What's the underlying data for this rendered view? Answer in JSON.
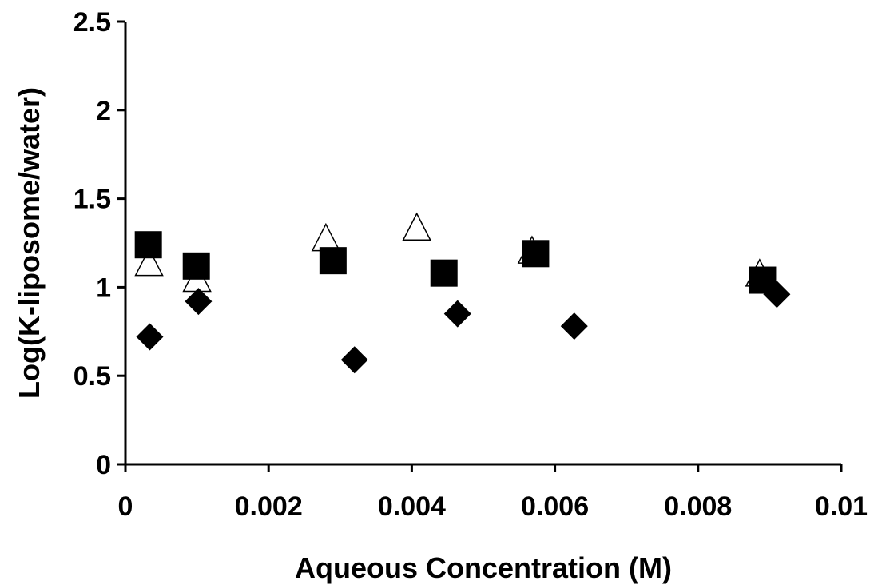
{
  "chart_data": {
    "type": "scatter",
    "title": "",
    "xlabel": "Aqueous Concentration (M)",
    "ylabel": "Log(K-liposome/water)",
    "xlim": [
      0,
      0.01
    ],
    "ylim": [
      0,
      2.5
    ],
    "x_ticks": [
      "0",
      "0.002",
      "0.004",
      "0.006",
      "0.008",
      "0.01"
    ],
    "y_ticks": [
      "0",
      "0.5",
      "1",
      "1.5",
      "2",
      "2.5"
    ],
    "grid": false,
    "legend": "none",
    "series": [
      {
        "marker": "diamond-filled",
        "color": "#000000",
        "points": [
          [
            0.00034,
            0.72
          ],
          [
            0.00102,
            0.92
          ],
          [
            0.0032,
            0.59
          ],
          [
            0.00464,
            0.85
          ],
          [
            0.00627,
            0.78
          ],
          [
            0.0091,
            0.96
          ]
        ]
      },
      {
        "marker": "square-filled",
        "color": "#000000",
        "points": [
          [
            0.00032,
            1.24
          ],
          [
            0.00099,
            1.12
          ],
          [
            0.0029,
            1.15
          ],
          [
            0.00445,
            1.08
          ],
          [
            0.00573,
            1.19
          ],
          [
            0.0089,
            1.04
          ]
        ]
      },
      {
        "marker": "triangle-open",
        "color": "#000000",
        "points": [
          [
            0.00033,
            1.13
          ],
          [
            0.001,
            1.04
          ],
          [
            0.0028,
            1.27
          ],
          [
            0.00407,
            1.33
          ],
          [
            0.00568,
            1.2
          ],
          [
            0.00886,
            1.07
          ]
        ]
      }
    ]
  }
}
